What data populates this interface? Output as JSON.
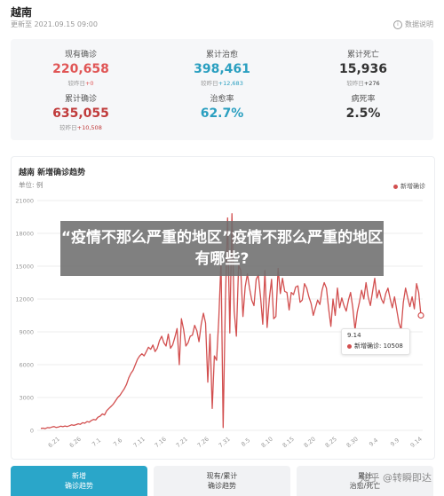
{
  "header": {
    "title": "越南",
    "updated": "更新至 2021.09.15 09:00",
    "source_label": "数据说明"
  },
  "stats": [
    {
      "label": "现有确诊",
      "value": "220,658",
      "sub_prefix": "较昨日",
      "delta": "+0",
      "color": "#e05555"
    },
    {
      "label": "累计治愈",
      "value": "398,461",
      "sub_prefix": "较昨日",
      "delta": "+12,683",
      "color": "#2a9fc0"
    },
    {
      "label": "累计死亡",
      "value": "15,936",
      "sub_prefix": "较昨日",
      "delta": "+276",
      "color": "#333333"
    },
    {
      "label": "累计确诊",
      "value": "635,055",
      "sub_prefix": "较昨日",
      "delta": "+10,508",
      "color": "#c03b3b"
    },
    {
      "label": "治愈率",
      "value": "62.7%",
      "sub_prefix": "",
      "delta": "",
      "color": "#2a9fc0"
    },
    {
      "label": "病死率",
      "value": "2.5%",
      "sub_prefix": "",
      "delta": "",
      "color": "#333333"
    }
  ],
  "chart": {
    "title": "越南 新增确诊趋势",
    "unit": "单位: 例",
    "legend": "新增确诊",
    "tooltip_date": "9.14",
    "tooltip_label": "新增确诊: 10508"
  },
  "chart_data": {
    "type": "line",
    "title": "越南 新增确诊趋势",
    "ylim": [
      0,
      21000
    ],
    "yticks": [
      "0",
      "3000",
      "6000",
      "9000",
      "12000",
      "15000",
      "18000",
      "21000"
    ],
    "xticks": [
      "6.21",
      "6.26",
      "7.1",
      "7.6",
      "7.11",
      "7.16",
      "7.21",
      "7.26",
      "7.31",
      "8.5",
      "8.10",
      "8.15",
      "8.20",
      "8.25",
      "8.30",
      "9.4",
      "9.9",
      "9.14"
    ],
    "series": [
      {
        "name": "新增确诊",
        "color": "#d24f4f",
        "values": [
          180,
          200,
          150,
          250,
          230,
          300,
          350,
          260,
          300,
          380,
          330,
          400,
          350,
          420,
          500,
          450,
          520,
          600,
          550,
          700,
          650,
          800,
          750,
          900,
          1000,
          950,
          1200,
          1300,
          1500,
          1400,
          1800,
          2000,
          2200,
          2400,
          2700,
          3000,
          3200,
          3500,
          3800,
          4200,
          4800,
          5200,
          5500,
          6000,
          6500,
          6800,
          7000,
          6800,
          7200,
          7600,
          7400,
          7800,
          7200,
          7500,
          8200,
          8600,
          8000,
          7700,
          8800,
          7500,
          7800,
          8500,
          9300,
          6000,
          10200,
          9200,
          7700,
          8000,
          8600,
          8700,
          9600,
          9100,
          8100,
          9700,
          10700,
          9800,
          4400,
          8800,
          2000,
          6800,
          6400,
          10200,
          15500,
          250,
          11700,
          19400,
          8900,
          19800,
          10900,
          8600,
          15100,
          14600,
          10400,
          13100,
          14300,
          13000,
          11900,
          11400,
          13800,
          14200,
          12200,
          9700,
          14600,
          9400,
          12000,
          13800,
          10200,
          10400,
          14800,
          12500,
          13900,
          12700,
          12600,
          11000,
          12600,
          12400,
          13100,
          13200,
          11700,
          11900,
          13400,
          13000,
          12200,
          11600,
          10500,
          11200,
          11900,
          11500,
          12800,
          13500,
          13000,
          11100,
          9500,
          12000,
          10500,
          13000,
          11200,
          12100,
          11400,
          10900,
          11900,
          12600,
          11200,
          9200,
          10800,
          11700,
          12800,
          12000,
          13500,
          12200,
          11400,
          12700,
          13900,
          12100,
          12800,
          12000,
          11600,
          12500,
          13000,
          12000,
          11200,
          12200,
          11000,
          9800,
          9200,
          11700,
          13000,
          12100,
          11300,
          12200,
          11100,
          13400,
          12600,
          10500
        ]
      }
    ]
  },
  "tabs": [
    {
      "line1": "新增",
      "line2": "确诊趋势",
      "active": true
    },
    {
      "line1": "现有/累计",
      "line2": "确诊趋势",
      "active": false
    },
    {
      "line1": "累计",
      "line2": "治愈/死亡",
      "active": false
    }
  ],
  "overlay_text": "“疫情不那么严重的地区”疫情不那么严重的地区有哪些?",
  "watermark": "知乎 @转瞬即达"
}
